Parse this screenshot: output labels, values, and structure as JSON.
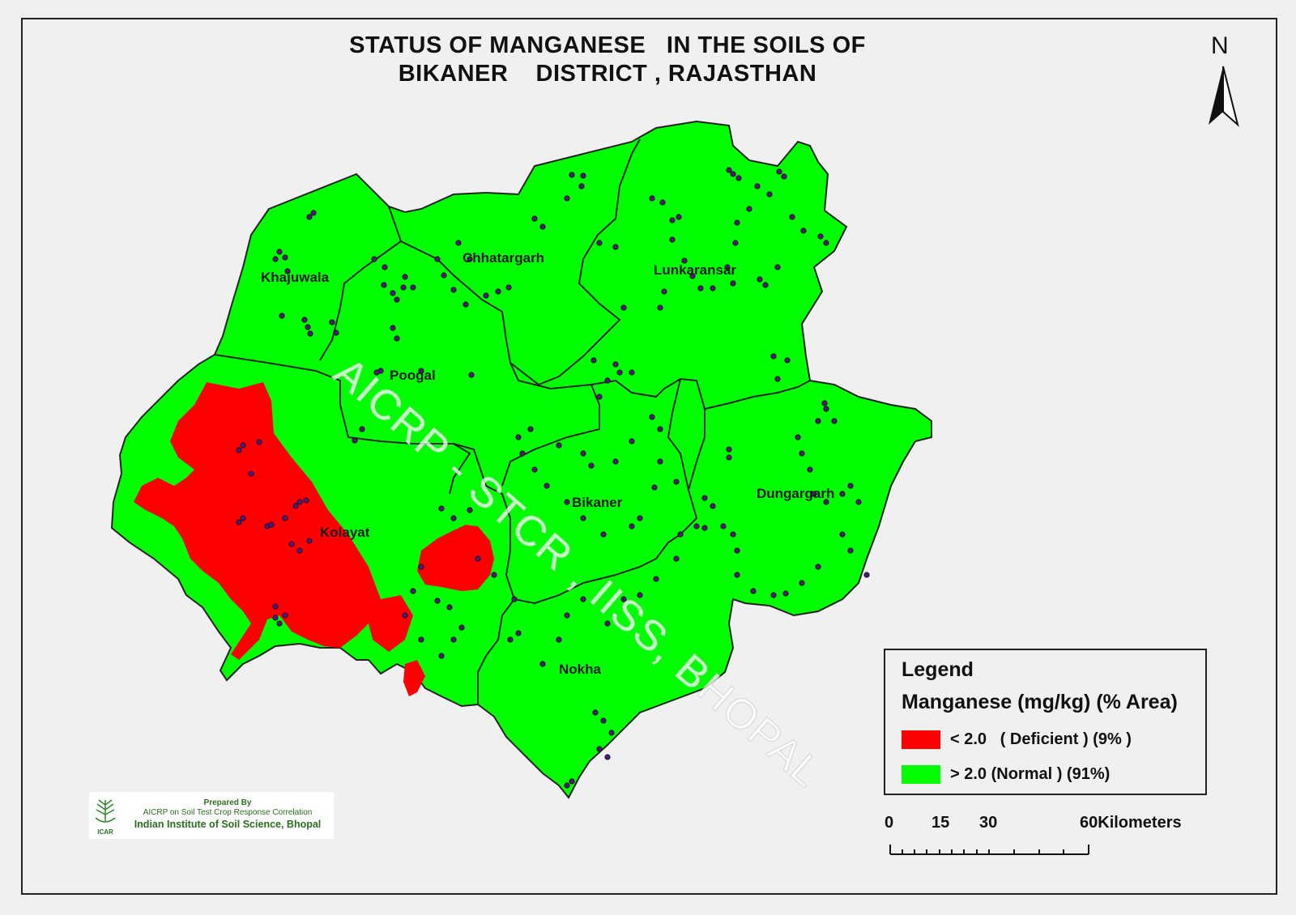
{
  "title": {
    "line1": "STATUS OF MANGANESE   IN THE SOILS OF",
    "line2": "BIKANER    DISTRICT , RAJASTHAN"
  },
  "north_arrow": {
    "label": "N",
    "icon": "north-arrow-icon"
  },
  "regions": {
    "khajuwala": "Khajuwala",
    "chhatargarh": "Chhatargarh",
    "lunkaransar": "Lunkaransar",
    "poogal": "Poogal",
    "kolayat": "Kolayat",
    "bikaner": "Bikaner",
    "dungargarh": "Dungargarh",
    "nokha": "Nokha"
  },
  "legend": {
    "title": "Legend",
    "subtitle": "Manganese (mg/kg) (% Area)",
    "items": [
      {
        "label": "< 2.0   ( Deficient ) (9% )",
        "color": "#ff0000"
      },
      {
        "label": "> 2.0 (Normal ) (91%)",
        "color": "#00ff00"
      }
    ]
  },
  "scale_bar": {
    "labels": [
      "0",
      "15",
      "30",
      "60Kilometers"
    ]
  },
  "credit": {
    "line1": "Prepared By",
    "line2": "AICRP on Soil Test Crop Response Correlation",
    "line3": "Indian Institute of Soil Science, Bhopal",
    "logo_text": "ICAR"
  },
  "watermark": "AICRP - STCR , IISS, BHOPAL",
  "colors": {
    "deficient": "#ff0000",
    "normal": "#00ff00",
    "sample_point": "#4b1c6b",
    "boundary": "#222222"
  }
}
